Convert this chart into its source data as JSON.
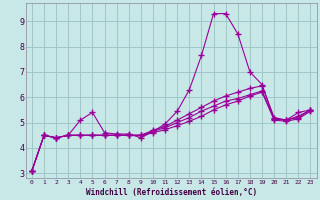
{
  "xlabel": "Windchill (Refroidissement éolien,°C)",
  "background_color": "#c8e8e8",
  "grid_color": "#a0c8c8",
  "line_color": "#990099",
  "xlim": [
    -0.5,
    23.5
  ],
  "ylim": [
    2.8,
    9.7
  ],
  "yticks": [
    3,
    4,
    5,
    6,
    7,
    8,
    9
  ],
  "xticks": [
    0,
    1,
    2,
    3,
    4,
    5,
    6,
    7,
    8,
    9,
    10,
    11,
    12,
    13,
    14,
    15,
    16,
    17,
    18,
    19,
    20,
    21,
    22,
    23
  ],
  "series": [
    [
      3.1,
      4.5,
      4.4,
      4.5,
      5.1,
      5.4,
      4.6,
      4.55,
      4.55,
      4.4,
      4.65,
      4.95,
      5.45,
      6.3,
      7.65,
      9.3,
      9.3,
      8.5,
      7.0,
      6.5,
      5.15,
      5.1,
      5.4,
      5.5
    ],
    [
      3.1,
      4.5,
      4.4,
      4.5,
      4.5,
      4.5,
      4.5,
      4.5,
      4.5,
      4.5,
      4.7,
      4.85,
      5.1,
      5.35,
      5.6,
      5.85,
      6.05,
      6.2,
      6.35,
      6.45,
      5.2,
      5.1,
      5.25,
      5.5
    ],
    [
      3.1,
      4.5,
      4.4,
      4.5,
      4.5,
      4.5,
      4.5,
      4.5,
      4.5,
      4.5,
      4.65,
      4.8,
      5.0,
      5.2,
      5.45,
      5.65,
      5.85,
      5.95,
      6.1,
      6.25,
      5.15,
      5.1,
      5.2,
      5.5
    ],
    [
      3.1,
      4.5,
      4.4,
      4.5,
      4.5,
      4.5,
      4.5,
      4.5,
      4.5,
      4.5,
      4.6,
      4.72,
      4.88,
      5.05,
      5.25,
      5.5,
      5.7,
      5.85,
      6.05,
      6.2,
      5.1,
      5.05,
      5.15,
      5.45
    ]
  ]
}
